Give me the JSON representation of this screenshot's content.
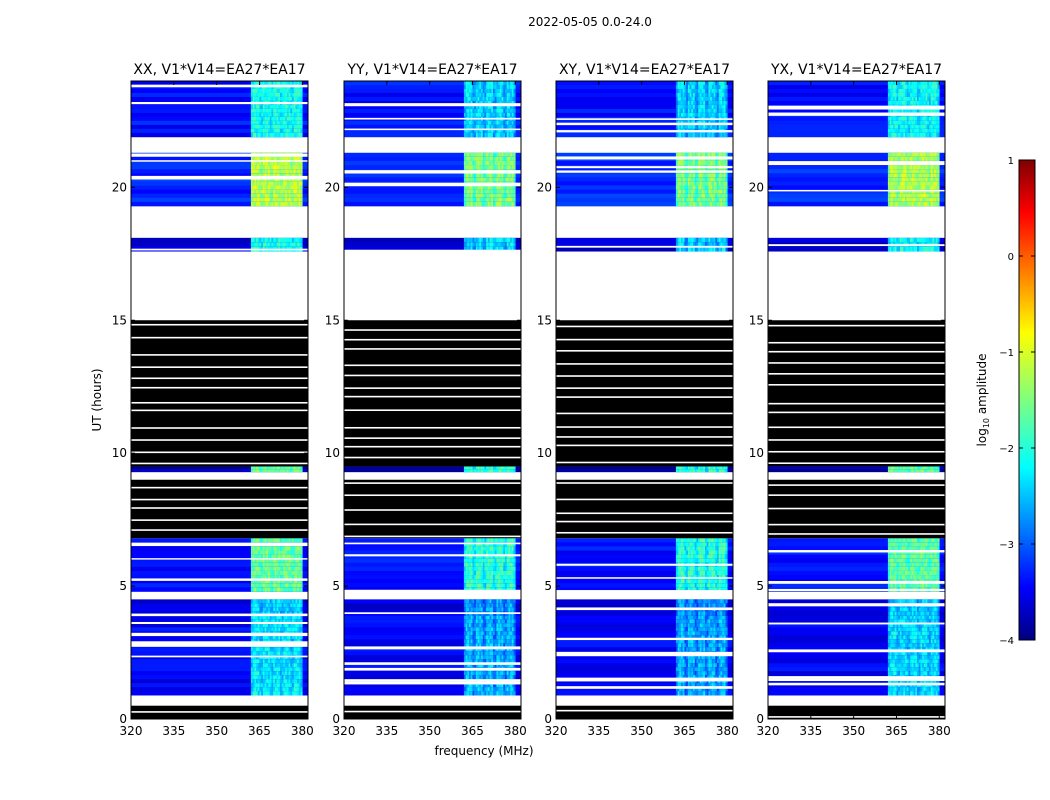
{
  "chart_data": {
    "type": "heatmap",
    "suptitle": "2022-05-05 0.0-24.0",
    "xlabel": "frequency (MHz)",
    "ylabel": "UT (hours)",
    "xlim": [
      320,
      382
    ],
    "ylim": [
      0,
      24
    ],
    "xticks": [
      320,
      335,
      350,
      365,
      380
    ],
    "yticks": [
      0,
      5,
      10,
      15,
      20
    ],
    "panels": [
      {
        "title": "XX, V1*V14=EA27*EA17",
        "strength": 1.0
      },
      {
        "title": "YY, V1*V14=EA27*EA17",
        "strength": 0.72
      },
      {
        "title": "XY, V1*V14=EA27*EA17",
        "strength": 0.7
      },
      {
        "title": "YX, V1*V14=EA27*EA17",
        "strength": 0.95
      }
    ],
    "colorbar": {
      "label": "log10 amplitude",
      "range": [
        -4,
        1
      ],
      "ticks": [
        1,
        0,
        -1,
        -2,
        -3,
        -4
      ]
    },
    "time_segments": [
      {
        "t0": 0.0,
        "t1": 0.5,
        "state": "flagged"
      },
      {
        "t0": 0.5,
        "t1": 0.9,
        "state": "gap"
      },
      {
        "t0": 0.9,
        "t1": 3.9,
        "state": "data",
        "base": -3.4,
        "rfi": -2.2
      },
      {
        "t0": 3.9,
        "t1": 4.5,
        "state": "data",
        "base": -3.5,
        "rfi": -2.3
      },
      {
        "t0": 4.5,
        "t1": 4.8,
        "state": "gap"
      },
      {
        "t0": 4.8,
        "t1": 6.8,
        "state": "data",
        "base": -3.3,
        "rfi": -1.6
      },
      {
        "t0": 6.8,
        "t1": 9.0,
        "state": "flagged"
      },
      {
        "t0": 9.0,
        "t1": 9.5,
        "state": "gap"
      },
      {
        "t0": 9.3,
        "t1": 9.5,
        "state": "data",
        "base": -3.8,
        "rfi": -1.6
      },
      {
        "t0": 9.5,
        "t1": 15.0,
        "state": "flagged"
      },
      {
        "t0": 15.0,
        "t1": 17.6,
        "state": "gap"
      },
      {
        "t0": 17.6,
        "t1": 18.1,
        "state": "data",
        "base": -3.6,
        "rfi": -2.0
      },
      {
        "t0": 18.1,
        "t1": 19.3,
        "state": "gap"
      },
      {
        "t0": 19.3,
        "t1": 21.3,
        "state": "data",
        "base": -3.2,
        "rfi": -1.2
      },
      {
        "t0": 21.3,
        "t1": 21.9,
        "state": "gap"
      },
      {
        "t0": 21.9,
        "t1": 24.0,
        "state": "data",
        "base": -3.3,
        "rfi": -2.0
      }
    ],
    "rfi_band_mhz": [
      362,
      380
    ]
  }
}
